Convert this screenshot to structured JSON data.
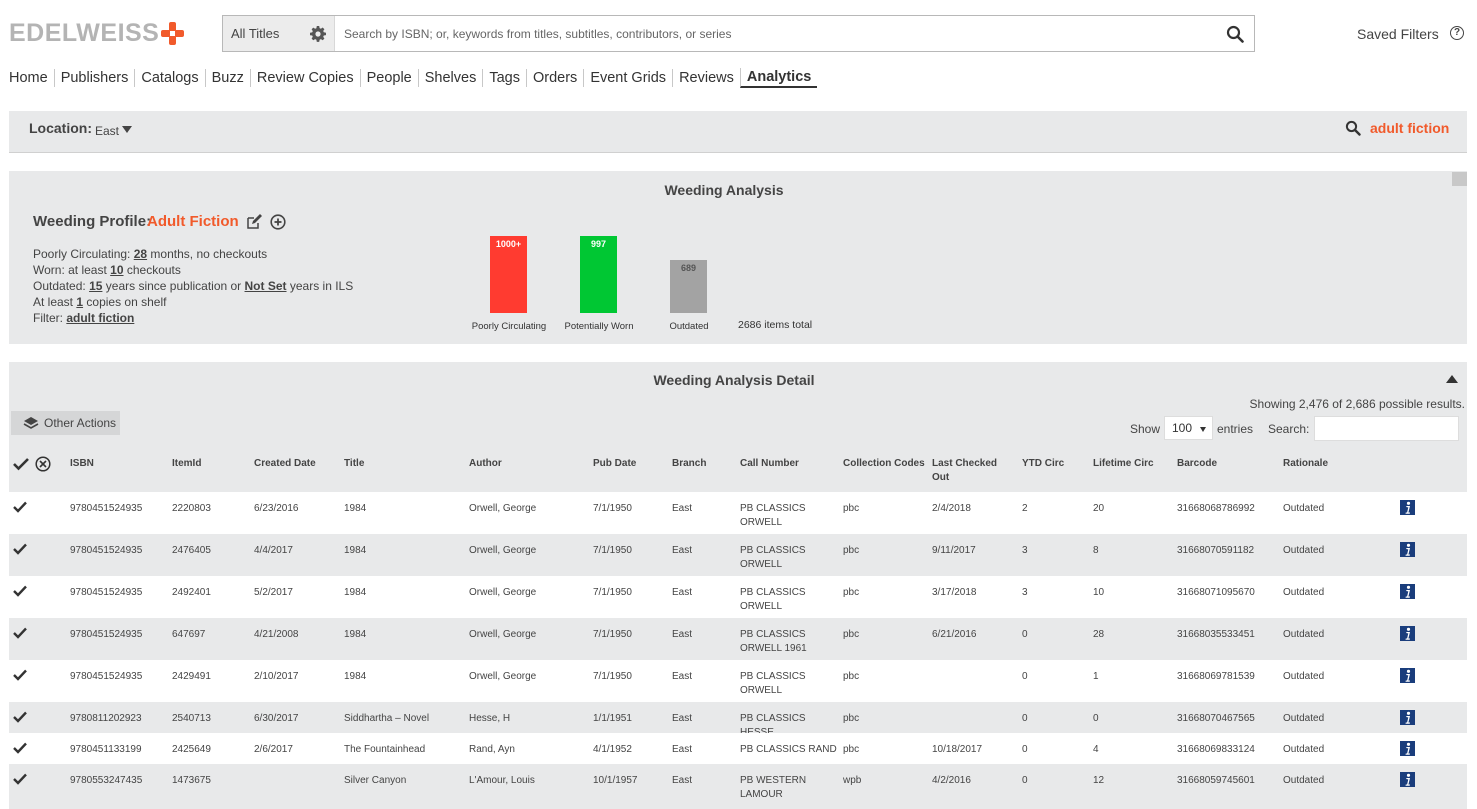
{
  "header": {
    "logo_text": "EDELWEISS",
    "scope": "All Titles",
    "search_placeholder": "Search by ISBN; or, keywords from titles, subtitles, contributors, or series",
    "saved_filters": "Saved Filters",
    "help": "?"
  },
  "nav": [
    "Home",
    "Publishers",
    "Catalogs",
    "Buzz",
    "Review Copies",
    "People",
    "Shelves",
    "Tags",
    "Orders",
    "Event Grids",
    "Reviews",
    "Analytics"
  ],
  "nav_active": "Analytics",
  "location": {
    "label": "Location:",
    "value": "East",
    "filter": "adult fiction"
  },
  "weeding": {
    "title": "Weeding Analysis",
    "profile_label": "Weeding Profile:",
    "profile_value": "Adult Fiction",
    "poorly": {
      "prefix": "Poorly Circulating:",
      "value": "28",
      "suffix": "months, no checkouts"
    },
    "worn": {
      "prefix": "Worn: at least",
      "value": "10",
      "suffix": "checkouts"
    },
    "outdated": {
      "prefix": "Outdated:",
      "value": "15",
      "mid": "years since publication or",
      "value2": "Not Set",
      "suffix": "years in ILS"
    },
    "shelf": {
      "prefix": "At least",
      "value": "1",
      "suffix": "copies on shelf"
    },
    "filter": {
      "prefix": "Filter:",
      "value": "adult fiction"
    },
    "chart_data": {
      "type": "bar",
      "categories": [
        "Poorly Circulating",
        "Potentially Worn",
        "Outdated"
      ],
      "labels": [
        "1000+",
        "997",
        "689"
      ],
      "values": [
        1000,
        997,
        689
      ],
      "colors": [
        "#ff3b30",
        "#00c733",
        "#a3a3a3"
      ],
      "total_label": "2686 items total"
    }
  },
  "detail": {
    "title": "Weeding Analysis Detail",
    "other_actions": "Other Actions",
    "showing": "Showing 2,476 of 2,686 possible results.",
    "show_label": "Show",
    "show_value": "100",
    "entries_label": "entries",
    "search_label": "Search:",
    "columns": [
      "ISBN",
      "ItemId",
      "Created Date",
      "Title",
      "Author",
      "Pub Date",
      "Branch",
      "Call Number",
      "Collection Codes",
      "Last Checked Out",
      "YTD Circ",
      "Lifetime Circ",
      "Barcode",
      "Rationale"
    ],
    "rows": [
      {
        "isbn": "9780451524935",
        "itemid": "2220803",
        "created": "6/23/2016",
        "title": "1984",
        "author": "Orwell, George",
        "pub": "7/1/1950",
        "branch": "East",
        "call": "PB CLASSICS ORWELL",
        "codes": "pbc",
        "last": "2/4/2018",
        "ytd": "2",
        "life": "20",
        "barcode": "31668068786992",
        "rationale": "Outdated"
      },
      {
        "isbn": "9780451524935",
        "itemid": "2476405",
        "created": "4/4/2017",
        "title": "1984",
        "author": "Orwell, George",
        "pub": "7/1/1950",
        "branch": "East",
        "call": "PB CLASSICS ORWELL",
        "codes": "pbc",
        "last": "9/11/2017",
        "ytd": "3",
        "life": "8",
        "barcode": "31668070591182",
        "rationale": "Outdated"
      },
      {
        "isbn": "9780451524935",
        "itemid": "2492401",
        "created": "5/2/2017",
        "title": "1984",
        "author": "Orwell, George",
        "pub": "7/1/1950",
        "branch": "East",
        "call": "PB CLASSICS ORWELL",
        "codes": "pbc",
        "last": "3/17/2018",
        "ytd": "3",
        "life": "10",
        "barcode": "31668071095670",
        "rationale": "Outdated"
      },
      {
        "isbn": "9780451524935",
        "itemid": "647697",
        "created": "4/21/2008",
        "title": "1984",
        "author": "Orwell, George",
        "pub": "7/1/1950",
        "branch": "East",
        "call": "PB CLASSICS ORWELL 1961",
        "codes": "pbc",
        "last": "6/21/2016",
        "ytd": "0",
        "life": "28",
        "barcode": "31668035533451",
        "rationale": "Outdated"
      },
      {
        "isbn": "9780451524935",
        "itemid": "2429491",
        "created": "2/10/2017",
        "title": "1984",
        "author": "Orwell, George",
        "pub": "7/1/1950",
        "branch": "East",
        "call": "PB CLASSICS ORWELL",
        "codes": "pbc",
        "last": "",
        "ytd": "0",
        "life": "1",
        "barcode": "31668069781539",
        "rationale": "Outdated"
      },
      {
        "isbn": "9780811202923",
        "itemid": "2540713",
        "created": "6/30/2017",
        "title": "Siddhartha – Novel",
        "author": "Hesse, H",
        "pub": "1/1/1951",
        "branch": "East",
        "call": "PB CLASSICS HESSE",
        "codes": "pbc",
        "last": "",
        "ytd": "0",
        "life": "0",
        "barcode": "31668070467565",
        "rationale": "Outdated"
      },
      {
        "isbn": "9780451133199",
        "itemid": "2425649",
        "created": "2/6/2017",
        "title": "The Fountainhead",
        "author": "Rand, Ayn",
        "pub": "4/1/1952",
        "branch": "East",
        "call": "PB CLASSICS RAND",
        "codes": "pbc",
        "last": "10/18/2017",
        "ytd": "0",
        "life": "4",
        "barcode": "31668069833124",
        "rationale": "Outdated"
      },
      {
        "isbn": "9780553247435",
        "itemid": "1473675",
        "created": "",
        "title": "Silver Canyon",
        "author": "L'Amour, Louis",
        "pub": "10/1/1957",
        "branch": "East",
        "call": "PB WESTERN LAMOUR",
        "codes": "wpb",
        "last": "4/2/2016",
        "ytd": "0",
        "life": "12",
        "barcode": "31668059745601",
        "rationale": "Outdated"
      }
    ]
  }
}
